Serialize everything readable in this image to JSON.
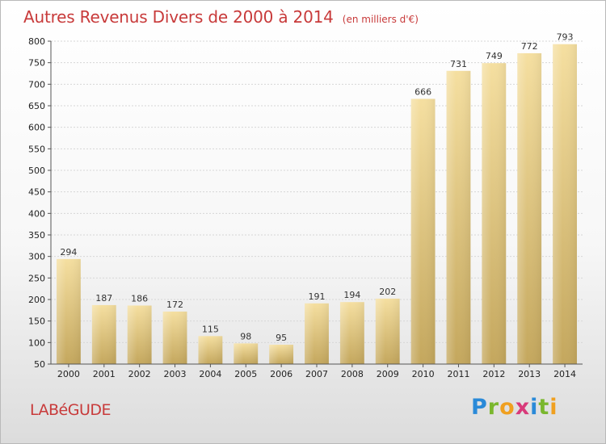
{
  "chart_data": {
    "type": "bar",
    "title": "Autres Revenus Divers de 2000 à 2014",
    "subtitle": "(en milliers d'€)",
    "categories": [
      "2000",
      "2001",
      "2002",
      "2003",
      "2004",
      "2005",
      "2006",
      "2007",
      "2008",
      "2009",
      "2010",
      "2011",
      "2012",
      "2013",
      "2014"
    ],
    "values": [
      294,
      187,
      186,
      172,
      115,
      98,
      95,
      191,
      194,
      202,
      666,
      731,
      749,
      772,
      793
    ],
    "ylim": [
      50,
      800
    ],
    "yticks": [
      50,
      100,
      150,
      200,
      250,
      300,
      350,
      400,
      450,
      500,
      550,
      600,
      650,
      700,
      750,
      800
    ],
    "grid": true,
    "bar_color_top": "#f5dfa0",
    "bar_color_bottom": "#c4a75d"
  },
  "commune": "LABéGUDE",
  "logo": {
    "text": "Proxiti",
    "letters": [
      {
        "ch": "P",
        "color": "#2a8ad8"
      },
      {
        "ch": "r",
        "color": "#7ab72e"
      },
      {
        "ch": "o",
        "color": "#f0a020"
      },
      {
        "ch": "x",
        "color": "#d83a7a"
      },
      {
        "ch": "i",
        "color": "#2a8ad8"
      },
      {
        "ch": "t",
        "color": "#7ab72e"
      },
      {
        "ch": "i",
        "color": "#f0a020"
      }
    ]
  }
}
